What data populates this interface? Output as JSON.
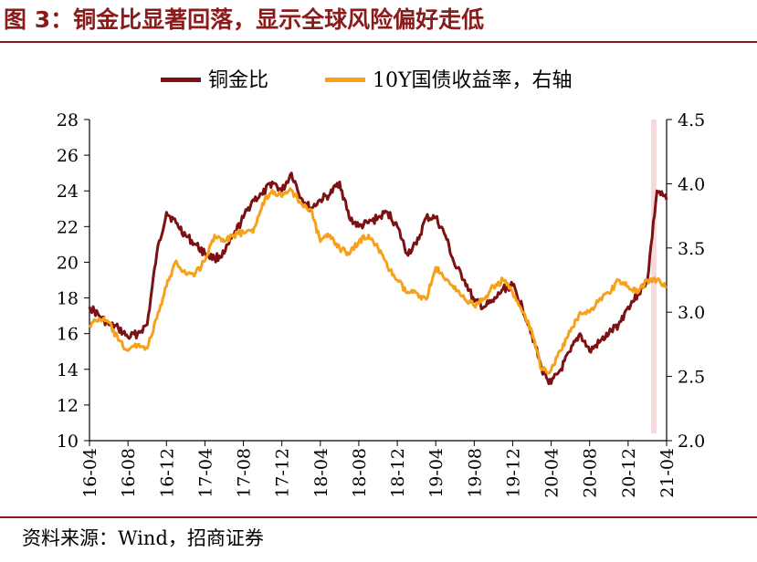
{
  "title": "图 3：铜金比显著回落，显示全球风险偏好走低",
  "source": "资料来源：Wind，招商证券",
  "chart_data": {
    "type": "line",
    "title": "图 3：铜金比显著回落，显示全球风险偏好走低",
    "x_ticks": [
      "16-04",
      "16-08",
      "16-12",
      "17-04",
      "17-08",
      "17-12",
      "18-04",
      "18-08",
      "18-12",
      "19-04",
      "19-08",
      "19-12",
      "20-04",
      "20-08",
      "20-12",
      "21-04"
    ],
    "x_range": [
      "2016-04",
      "2021-04"
    ],
    "y_left": {
      "ticks": [
        "10",
        "12",
        "14",
        "16",
        "18",
        "20",
        "22",
        "24",
        "26",
        "28"
      ],
      "ylim": [
        10,
        28
      ]
    },
    "y_right": {
      "ticks": [
        "2.0",
        "2.5",
        "3.0",
        "3.5",
        "4.0",
        "4.5"
      ],
      "ylim": [
        2.0,
        4.5
      ],
      "label": "右轴"
    },
    "grid": false,
    "legend": "top-center",
    "highlight": {
      "from": "2021-02",
      "to": "2021-04",
      "color": "#f6d9dc"
    },
    "series": [
      {
        "name": "铜金比",
        "axis": "left",
        "color": "#7b1113",
        "x": [
          "2016-04",
          "2016-05",
          "2016-06",
          "2016-07",
          "2016-08",
          "2016-09",
          "2016-10",
          "2016-11",
          "2016-12",
          "2017-01",
          "2017-02",
          "2017-03",
          "2017-04",
          "2017-05",
          "2017-06",
          "2017-07",
          "2017-08",
          "2017-09",
          "2017-10",
          "2017-11",
          "2017-12",
          "2018-01",
          "2018-02",
          "2018-03",
          "2018-04",
          "2018-05",
          "2018-06",
          "2018-07",
          "2018-08",
          "2018-09",
          "2018-10",
          "2018-11",
          "2018-12",
          "2019-01",
          "2019-02",
          "2019-03",
          "2019-04",
          "2019-05",
          "2019-06",
          "2019-07",
          "2019-08",
          "2019-09",
          "2019-10",
          "2019-11",
          "2019-12",
          "2020-01",
          "2020-02",
          "2020-03",
          "2020-04",
          "2020-05",
          "2020-06",
          "2020-07",
          "2020-08",
          "2020-09",
          "2020-10",
          "2020-11",
          "2020-12",
          "2021-01",
          "2021-02",
          "2021-03",
          "2021-04"
        ],
        "values": [
          17.5,
          17.0,
          16.5,
          16.3,
          15.8,
          16.0,
          16.5,
          20.5,
          22.8,
          22.2,
          21.5,
          21.0,
          20.5,
          20.2,
          20.5,
          21.5,
          22.5,
          23.5,
          23.8,
          24.5,
          24.0,
          25.0,
          23.6,
          23.0,
          23.5,
          23.8,
          24.5,
          22.5,
          22.0,
          22.2,
          22.5,
          22.8,
          22.0,
          20.5,
          21.0,
          22.5,
          22.5,
          21.5,
          19.8,
          19.0,
          17.8,
          17.5,
          17.8,
          18.5,
          18.7,
          17.5,
          16.0,
          14.0,
          13.2,
          14.0,
          15.0,
          16.0,
          15.0,
          15.5,
          16.0,
          16.5,
          17.5,
          18.2,
          19.0,
          24.0,
          23.5
        ]
      },
      {
        "name": "10Y国债收益率，右轴",
        "axis": "right",
        "color": "#f7a11a",
        "x": [
          "2016-04",
          "2016-05",
          "2016-06",
          "2016-07",
          "2016-08",
          "2016-09",
          "2016-10",
          "2016-11",
          "2016-12",
          "2017-01",
          "2017-02",
          "2017-03",
          "2017-04",
          "2017-05",
          "2017-06",
          "2017-07",
          "2017-08",
          "2017-09",
          "2017-10",
          "2017-11",
          "2017-12",
          "2018-01",
          "2018-02",
          "2018-03",
          "2018-04",
          "2018-05",
          "2018-06",
          "2018-07",
          "2018-08",
          "2018-09",
          "2018-10",
          "2018-11",
          "2018-12",
          "2019-01",
          "2019-02",
          "2019-03",
          "2019-04",
          "2019-05",
          "2019-06",
          "2019-07",
          "2019-08",
          "2019-09",
          "2019-10",
          "2019-11",
          "2019-12",
          "2020-01",
          "2020-02",
          "2020-03",
          "2020-04",
          "2020-05",
          "2020-06",
          "2020-07",
          "2020-08",
          "2020-09",
          "2020-10",
          "2020-11",
          "2020-12",
          "2021-01",
          "2021-02",
          "2021-03",
          "2021-04"
        ],
        "values": [
          2.9,
          2.95,
          2.92,
          2.78,
          2.7,
          2.75,
          2.72,
          2.95,
          3.2,
          3.4,
          3.3,
          3.3,
          3.4,
          3.6,
          3.55,
          3.6,
          3.62,
          3.62,
          3.85,
          3.95,
          3.9,
          3.95,
          3.85,
          3.8,
          3.55,
          3.6,
          3.5,
          3.45,
          3.55,
          3.6,
          3.5,
          3.35,
          3.25,
          3.15,
          3.15,
          3.1,
          3.35,
          3.25,
          3.2,
          3.1,
          3.05,
          3.1,
          3.2,
          3.25,
          3.15,
          3.0,
          2.85,
          2.55,
          2.55,
          2.7,
          2.85,
          3.0,
          3.0,
          3.1,
          3.15,
          3.25,
          3.2,
          3.15,
          3.25,
          3.25,
          3.2
        ]
      }
    ]
  }
}
